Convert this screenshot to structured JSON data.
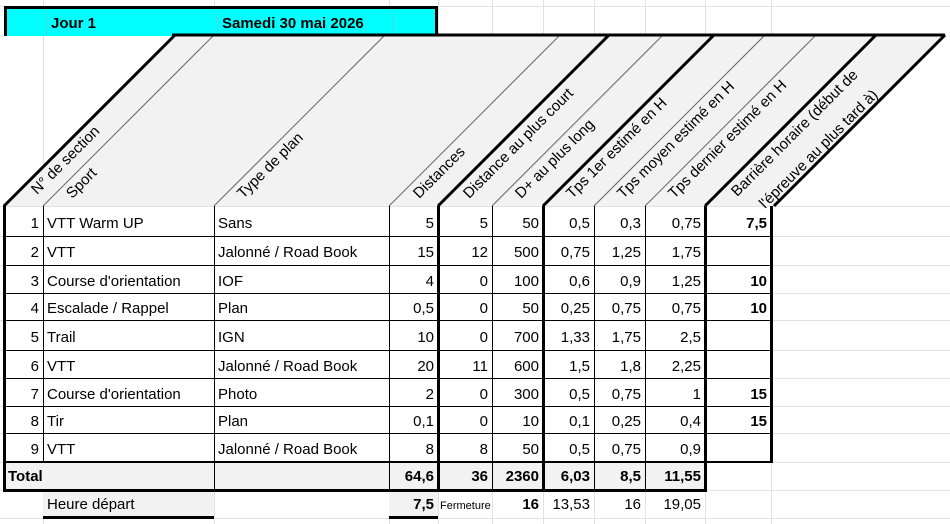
{
  "title_bar": {
    "day_label": "Jour 1",
    "date_label": "Samedi 30 mai 2026",
    "background_color": "#00ffff"
  },
  "headers": {
    "section_number": "N° de section",
    "sport": "Sport",
    "plan_type": "Type de plan",
    "distances": "Distances",
    "distance_shortest": "Distance au plus court",
    "elevation_longest": "D+ au plus long",
    "time_first": "Tps 1er estimé en H",
    "time_average": "Tps moyen estimé en H",
    "time_last": "Tps dernier estimé en H",
    "time_barrier_line1": "Barrière horaire (début de",
    "time_barrier_line2": "l'épreuve au plus tard à)"
  },
  "rows": [
    {
      "num": "1",
      "sport": "VTT Warm UP",
      "plan": "Sans",
      "dist": "5",
      "dist_short": "5",
      "dplus": "50",
      "t1": "0,5",
      "tavg": "0,3",
      "tlast": "0,75",
      "barrier": "7,5"
    },
    {
      "num": "2",
      "sport": "VTT",
      "plan": "Jalonné / Road Book",
      "dist": "15",
      "dist_short": "12",
      "dplus": "500",
      "t1": "0,75",
      "tavg": "1,25",
      "tlast": "1,75",
      "barrier": ""
    },
    {
      "num": "3",
      "sport": "Course d'orientation",
      "plan": "IOF",
      "dist": "4",
      "dist_short": "0",
      "dplus": "100",
      "t1": "0,6",
      "tavg": "0,9",
      "tlast": "1,25",
      "barrier": "10"
    },
    {
      "num": "4",
      "sport": "Escalade / Rappel",
      "plan": "Plan",
      "dist": "0,5",
      "dist_short": "0",
      "dplus": "50",
      "t1": "0,25",
      "tavg": "0,75",
      "tlast": "0,75",
      "barrier": "10"
    },
    {
      "num": "5",
      "sport": "Trail",
      "plan": "IGN",
      "dist": "10",
      "dist_short": "0",
      "dplus": "700",
      "t1": "1,33",
      "tavg": "1,75",
      "tlast": "2,5",
      "barrier": ""
    },
    {
      "num": "6",
      "sport": "VTT",
      "plan": "Jalonné / Road Book",
      "dist": "20",
      "dist_short": "11",
      "dplus": "600",
      "t1": "1,5",
      "tavg": "1,8",
      "tlast": "2,25",
      "barrier": ""
    },
    {
      "num": "7",
      "sport": "Course d'orientation",
      "plan": "Photo",
      "dist": "2",
      "dist_short": "0",
      "dplus": "300",
      "t1": "0,5",
      "tavg": "0,75",
      "tlast": "1",
      "barrier": "15"
    },
    {
      "num": "8",
      "sport": "Tir",
      "plan": "Plan",
      "dist": "0,1",
      "dist_short": "0",
      "dplus": "10",
      "t1": "0,1",
      "tavg": "0,25",
      "tlast": "0,4",
      "barrier": "15"
    },
    {
      "num": "9",
      "sport": "VTT",
      "plan": "Jalonné / Road Book",
      "dist": "8",
      "dist_short": "8",
      "dplus": "50",
      "t1": "0,5",
      "tavg": "0,75",
      "tlast": "0,9",
      "barrier": ""
    }
  ],
  "total": {
    "label": "Total",
    "dist": "64,6",
    "dist_short": "36",
    "dplus": "2360",
    "t1": "6,03",
    "tavg": "8,5",
    "tlast": "11,55"
  },
  "footer": {
    "start_label": "Heure départ",
    "start_value": "7,5",
    "closing_label": "Fermeture",
    "closing_value": "16",
    "t1_end": "13,53",
    "tavg_end": "16",
    "tlast_end": "19,05"
  }
}
